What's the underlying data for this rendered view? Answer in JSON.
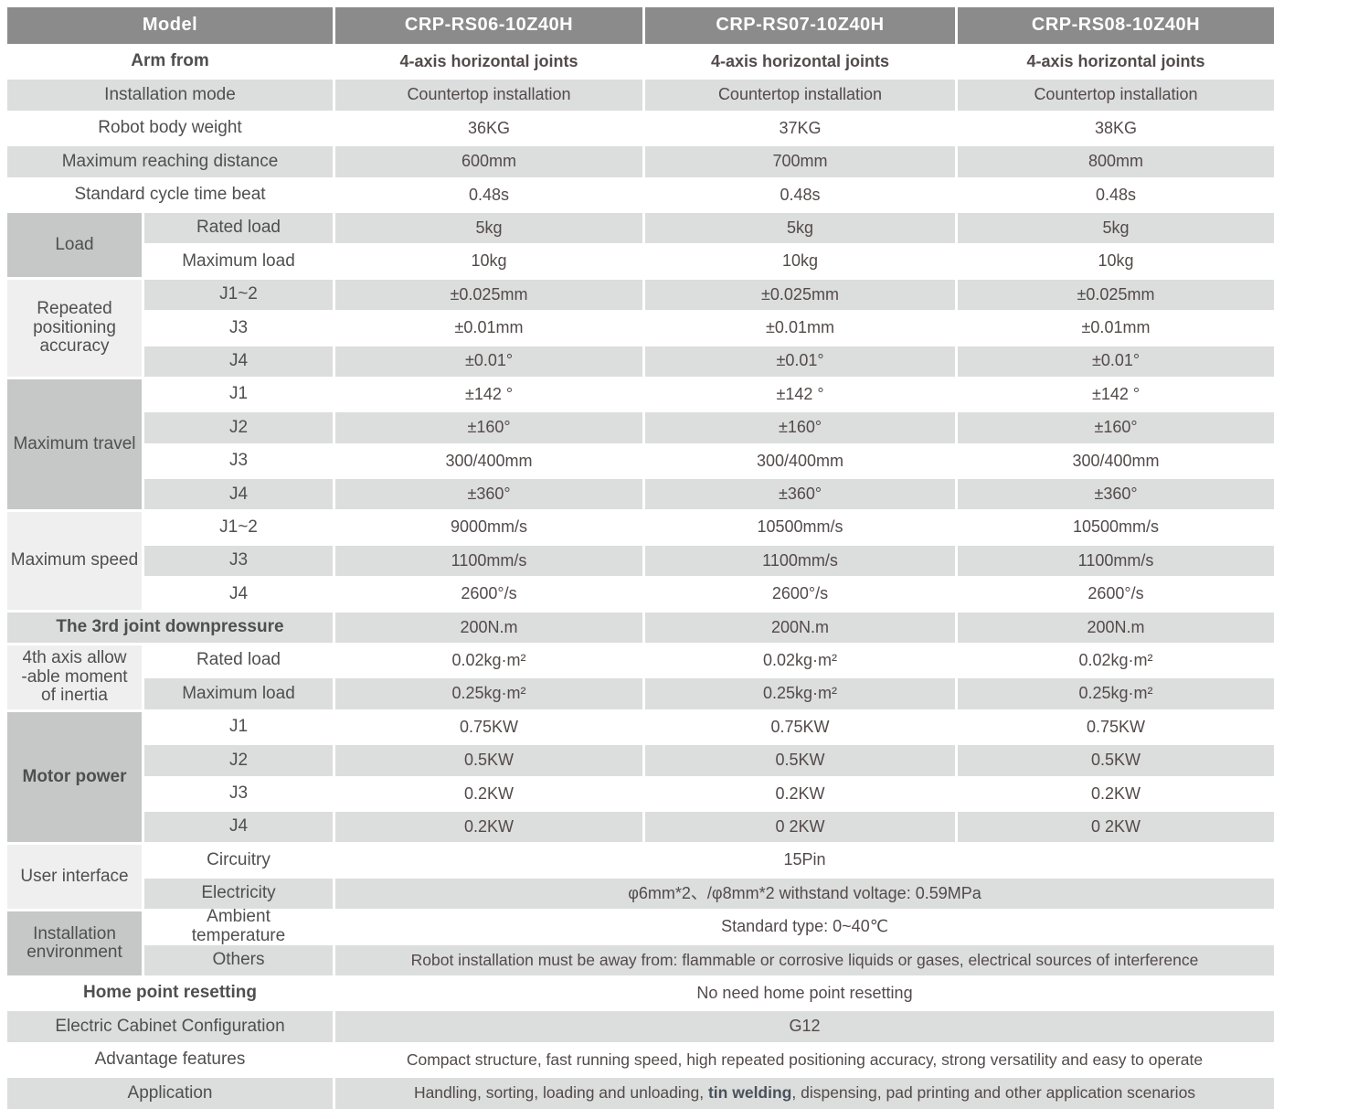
{
  "colors": {
    "header_bg": "#8b8b8b",
    "header_text": "#ffffff",
    "row_alt_bg": "#dcdddd",
    "group_dark_bg": "#c6c7c7",
    "group_light_bg": "#efefef",
    "label_text": "#4f4f4f",
    "value_text": "#534a4a"
  },
  "header": {
    "model_label": "Model",
    "models": [
      "CRP-RS06-10Z40H",
      "CRP-RS07-10Z40H",
      "CRP-RS08-10Z40H"
    ]
  },
  "rows": {
    "arm_from": {
      "label": "Arm from",
      "values": [
        "4-axis horizontal joints",
        "4-axis horizontal joints",
        "4-axis horizontal joints"
      ]
    },
    "installation_mode": {
      "label": "Installation mode",
      "values": [
        "Countertop installation",
        "Countertop installation",
        "Countertop installation"
      ]
    },
    "body_weight": {
      "label": "Robot body weight",
      "values": [
        "36KG",
        "37KG",
        "38KG"
      ]
    },
    "reach_distance": {
      "label": "Maximum reaching distance",
      "values": [
        "600mm",
        "700mm",
        "800mm"
      ]
    },
    "cycle_time": {
      "label": "Standard cycle time beat",
      "values": [
        "0.48s",
        "0.48s",
        "0.48s"
      ]
    },
    "downpressure": {
      "label": "The 3rd joint downpressure",
      "values": [
        "200N.m",
        "200N.m",
        "200N.m"
      ]
    },
    "home_reset": {
      "label": "Home point resetting",
      "value": "No need home point resetting"
    },
    "cabinet": {
      "label": "Electric Cabinet Configuration",
      "value": "G12"
    },
    "advantage": {
      "label": "Advantage features",
      "value": "Compact structure, fast running speed, high repeated positioning accuracy, strong versatility and easy to operate"
    },
    "application": {
      "label": "Application",
      "value_prefix": "Handling, sorting, loading and unloading, ",
      "value_bold": "tin welding",
      "value_suffix": ", dispensing, pad printing and other application scenarios"
    }
  },
  "groups": {
    "load": {
      "label": "Load",
      "rated": {
        "label": "Rated load",
        "values": [
          "5kg",
          "5kg",
          "5kg"
        ]
      },
      "maximum": {
        "label": "Maximum load",
        "values": [
          "10kg",
          "10kg",
          "10kg"
        ]
      }
    },
    "accuracy": {
      "label": "Repeated positioning accuracy",
      "j12": {
        "label": "J1~2",
        "values": [
          "±0.025mm",
          "±0.025mm",
          "±0.025mm"
        ]
      },
      "j3": {
        "label": "J3",
        "values": [
          "±0.01mm",
          "±0.01mm",
          "±0.01mm"
        ]
      },
      "j4": {
        "label": "J4",
        "values": [
          "±0.01°",
          "±0.01°",
          "±0.01°"
        ]
      }
    },
    "travel": {
      "label": "Maximum travel",
      "j1": {
        "label": "J1",
        "values": [
          "±142 °",
          "±142 °",
          "±142 °"
        ]
      },
      "j2": {
        "label": "J2",
        "values": [
          "±160°",
          "±160°",
          "±160°"
        ]
      },
      "j3": {
        "label": "J3",
        "values": [
          "300/400mm",
          "300/400mm",
          "300/400mm"
        ]
      },
      "j4": {
        "label": "J4",
        "values": [
          "±360°",
          "±360°",
          "±360°"
        ]
      }
    },
    "speed": {
      "label": "Maximum speed",
      "j12": {
        "label": "J1~2",
        "values": [
          "9000mm/s",
          "10500mm/s",
          "10500mm/s"
        ]
      },
      "j3": {
        "label": "J3",
        "values": [
          "1100mm/s",
          "1100mm/s",
          "1100mm/s"
        ]
      },
      "j4": {
        "label": "J4",
        "values": [
          "2600°/s",
          "2600°/s",
          "2600°/s"
        ]
      }
    },
    "inertia": {
      "label": "4th axis allow\n-able moment\nof inertia",
      "rated": {
        "label": "Rated load",
        "values": [
          "0.02kg·m²",
          "0.02kg·m²",
          "0.02kg·m²"
        ]
      },
      "maximum": {
        "label": "Maximum load",
        "values": [
          "0.25kg·m²",
          "0.25kg·m²",
          "0.25kg·m²"
        ]
      }
    },
    "motor": {
      "label": "Motor power",
      "j1": {
        "label": "J1",
        "values": [
          "0.75KW",
          "0.75KW",
          "0.75KW"
        ]
      },
      "j2": {
        "label": "J2",
        "values": [
          "0.5KW",
          "0.5KW",
          "0.5KW"
        ]
      },
      "j3": {
        "label": "J3",
        "values": [
          "0.2KW",
          "0.2KW",
          "0.2KW"
        ]
      },
      "j4": {
        "label": "J4",
        "values": [
          "0.2KW",
          "0 2KW",
          "0 2KW"
        ]
      }
    },
    "user_interface": {
      "label": "User interface",
      "circuitry": {
        "label": "Circuitry",
        "value": "15Pin"
      },
      "electricity": {
        "label": "Electricity",
        "value": "φ6mm*2、/φ8mm*2  withstand voltage: 0.59MPa"
      }
    },
    "environment": {
      "label": "Installation environment",
      "ambient": {
        "label": "Ambient\ntemperature",
        "value": "Standard type:  0~40℃"
      },
      "others": {
        "label": "Others",
        "value": "Robot installation must be away from: flammable or corrosive liquids or gases, electrical sources of interference"
      }
    }
  }
}
